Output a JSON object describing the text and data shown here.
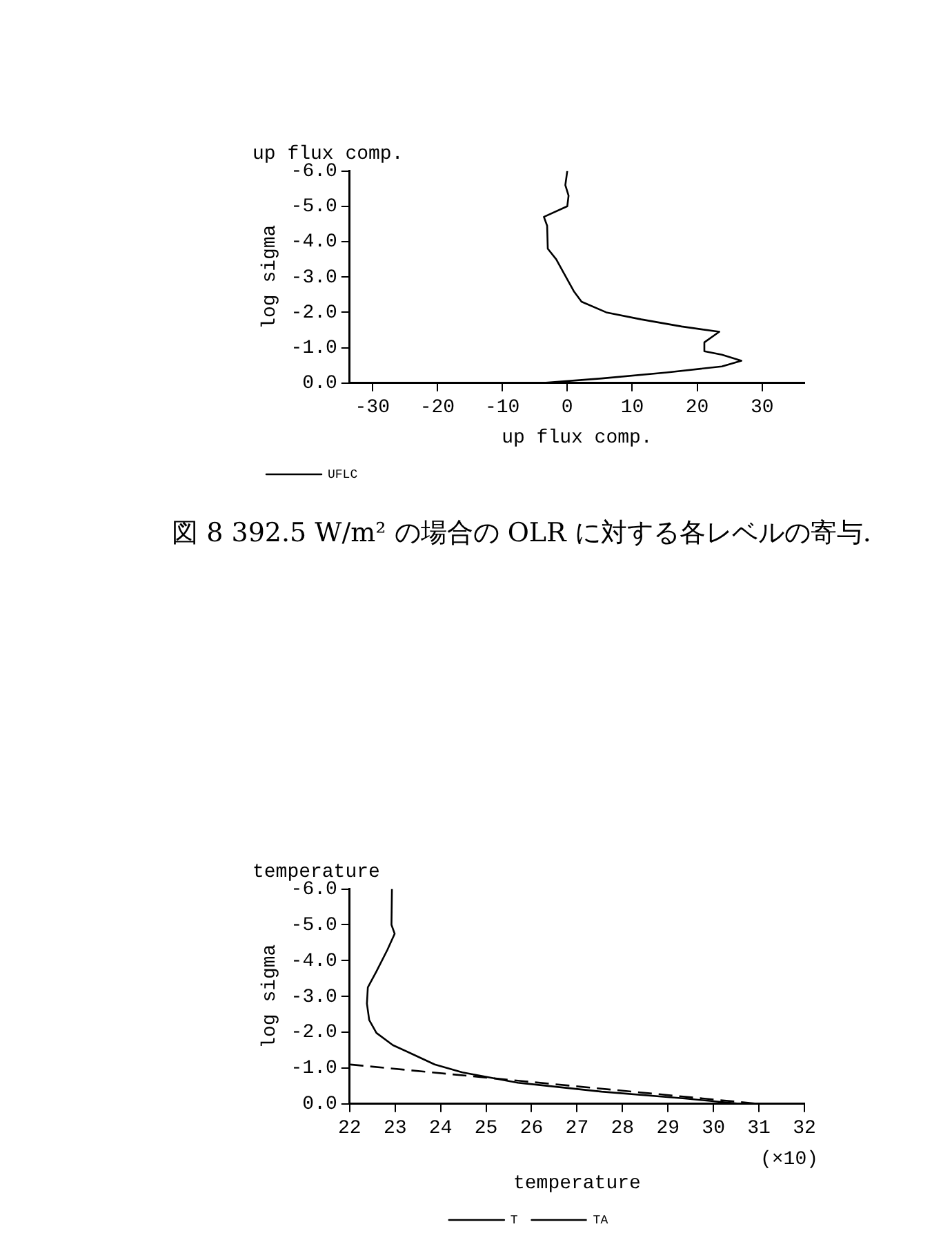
{
  "chart_data": [
    {
      "type": "line",
      "title": "up flux comp.",
      "xlabel": "up flux comp.",
      "ylabel": "log sigma",
      "xlim": [
        -33.5,
        36.5
      ],
      "xticks": [
        -30,
        -20,
        -10,
        0,
        10,
        20,
        30
      ],
      "ylim": [
        0,
        -6
      ],
      "yticks": [
        {
          "value": 0,
          "label": "0.0"
        },
        {
          "value": -1,
          "label": "-1.0"
        },
        {
          "value": -2,
          "label": "-2.0"
        },
        {
          "value": -3,
          "label": "-3.0"
        },
        {
          "value": -4,
          "label": "-4.0"
        },
        {
          "value": -5,
          "label": "-5.0"
        },
        {
          "value": -6,
          "label": "-6.0"
        }
      ],
      "grid": false,
      "legend": "bottom left",
      "annotations": [
        "図 8  392.5 W/m² の場合の OLR に対する各レベルの寄与."
      ],
      "series": [
        {
          "name": "UFLC",
          "color": "#000000",
          "line_style": "solid",
          "x": [
            0,
            -0.3,
            0.2,
            0,
            -3.6,
            -3.1,
            -3.0,
            -1.7,
            -0.5,
            1.0,
            2.2,
            6.0,
            11.4,
            17.6,
            23.4,
            21.1,
            21.1,
            23.8,
            26.8,
            23.8,
            15.3,
            5.3,
            -4
          ],
          "values": [
            -6,
            -5.6,
            -5.3,
            -5,
            -4.7,
            -4.45,
            -3.8,
            -3.5,
            -3.1,
            -2.6,
            -2.3,
            -2,
            -1.8,
            -1.6,
            -1.45,
            -1.15,
            -0.9,
            -0.8,
            -0.63,
            -0.47,
            -0.3,
            -0.13,
            0
          ]
        }
      ]
    },
    {
      "type": "line",
      "title": "temperature",
      "xlabel": "temperature",
      "ylabel": "log sigma",
      "xlim": [
        22,
        32
      ],
      "xticks": [
        22,
        23,
        24,
        25,
        26,
        27,
        28,
        29,
        30,
        31,
        32
      ],
      "ylim": [
        0,
        -6
      ],
      "yticks": [
        {
          "value": 0,
          "label": "0.0"
        },
        {
          "value": -1,
          "label": "-1.0"
        },
        {
          "value": -2,
          "label": "-2.0"
        },
        {
          "value": -3,
          "label": "-3.0"
        },
        {
          "value": -4,
          "label": "-4.0"
        },
        {
          "value": -5,
          "label": "-5.0"
        },
        {
          "value": -6,
          "label": "-6.0"
        }
      ],
      "grid": false,
      "legend": "bottom",
      "annotations": [
        "(×10)"
      ],
      "series": [
        {
          "name": "T",
          "color": "#000000",
          "line_style": "solid",
          "x": [
            22.93,
            22.92,
            22.99,
            22.83,
            22.59,
            22.4,
            22.38,
            22.43,
            22.59,
            22.95,
            23.38,
            23.87,
            24.48,
            25.7,
            27.54,
            29.37,
            30.6
          ],
          "values": [
            -6,
            -5,
            -4.75,
            -4.3,
            -3.7,
            -3.25,
            -2.8,
            -2.34,
            -1.98,
            -1.64,
            -1.39,
            -1.1,
            -0.88,
            -0.59,
            -0.34,
            -0.15,
            0
          ]
        },
        {
          "name": "TA",
          "color": "#000000",
          "line_style": "dashed",
          "x": [
            22,
            31
          ],
          "values": [
            -1.1,
            0
          ]
        }
      ]
    }
  ]
}
